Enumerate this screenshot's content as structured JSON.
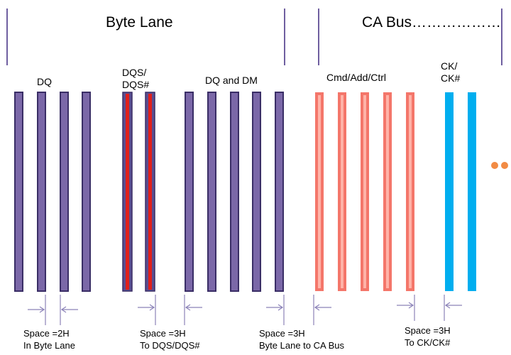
{
  "sections": {
    "byte_lane": "Byte Lane",
    "ca_bus": "CA Bus………………"
  },
  "groups": {
    "dq": "DQ",
    "dqs_line1": "DQS/",
    "dqs_line2": "DQS#",
    "dq_dm": "DQ and DM",
    "cmd": "Cmd/Add/Ctrl",
    "ck_line1": "CK/",
    "ck_line2": "CK#"
  },
  "spacing": [
    {
      "line1": "Space =2H",
      "line2": "In Byte Lane"
    },
    {
      "line1": "Space =3H",
      "line2": "To DQS/DQS#"
    },
    {
      "line1": "Space =3H",
      "line2": "Byte Lane to CA Bus"
    },
    {
      "line1": "Space =3H",
      "line2": "To CK/CK#"
    }
  ],
  "colors": {
    "dq_trace": "#7b68a8",
    "dq_outline": "#3a2e66",
    "dqs_outer": "#5b4e90",
    "dqs_inner": "#e0201c",
    "ca_outer": "#f4766a",
    "ca_inner": "#ffb3a8",
    "ck": "#00aeef",
    "ellipsis": "#f28b44",
    "divider": "#6f5fa0",
    "dimension": "#8b82b8"
  }
}
